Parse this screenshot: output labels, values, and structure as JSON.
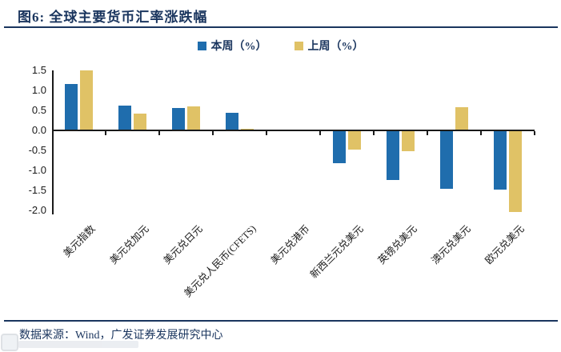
{
  "header": {
    "title": "图6: 全球主要货币汇率涨跌幅"
  },
  "legend": [
    {
      "label": "本周（%）",
      "color": "#1F6DAD"
    },
    {
      "label": "上周（%）",
      "color": "#E0C266"
    }
  ],
  "chart_data": {
    "type": "bar",
    "title": "图6: 全球主要货币汇率涨跌幅",
    "categories": [
      "美元指数",
      "美元兑加元",
      "美元兑日元",
      "美元兑人民币(CFETS)",
      "美元兑港币",
      "新西兰元兑美元",
      "英镑兑美元",
      "澳元兑美元",
      "欧元兑美元"
    ],
    "series": [
      {
        "name": "本周（%）",
        "color": "#1F6DAD",
        "values": [
          1.17,
          0.62,
          0.56,
          0.44,
          0.0,
          -0.8,
          -1.22,
          -1.44,
          -1.46
        ]
      },
      {
        "name": "上周（%）",
        "color": "#E0C266",
        "values": [
          1.5,
          0.43,
          0.61,
          0.04,
          0.0,
          -0.45,
          -0.5,
          0.58,
          -2.02
        ]
      }
    ],
    "xlabel": "",
    "ylabel": "",
    "ylim": [
      -2.0,
      1.5
    ],
    "yticks": [
      "1.5",
      "1.0",
      "0.5",
      "0.0",
      "-0.5",
      "-1.0",
      "-1.5",
      "-2.0"
    ],
    "grid": false,
    "legend_position": "top-center"
  },
  "footer": {
    "source": "数据来源：Wind，广发证券发展研究中心"
  },
  "colors": {
    "this_week_blue": "#1F6DAD",
    "last_week_yellow": "#E0C266",
    "navy_text": "#1A355E",
    "axis_black": "#1A1A1A"
  }
}
